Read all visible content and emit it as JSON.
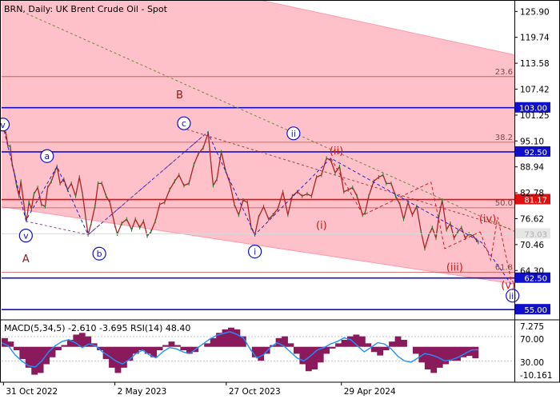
{
  "chart_data": {
    "type": "line",
    "title": "BRN, Daily:  UK Brent Crude Oil - Spot",
    "price_axis": {
      "ticks": [
        125.9,
        119.74,
        113.58,
        107.42,
        101.25,
        95.1,
        88.94,
        82.78,
        76.62,
        70.46,
        64.3
      ],
      "ylim": [
        52.94,
        128.24
      ]
    },
    "x_axis": {
      "ticks": [
        "31 Oct 2022",
        "2 May 2023",
        "27 Oct 2023",
        "29 Apr 2024"
      ],
      "xlim": [
        "2022-10-31",
        "2025-02-01"
      ]
    },
    "current_price": "73.03",
    "horizontal_levels": [
      {
        "value": 103.0,
        "label": "103.00",
        "color": "#1010cc"
      },
      {
        "value": 92.5,
        "label": "92.50",
        "color": "#1010cc"
      },
      {
        "value": 81.17,
        "label": "81.17",
        "color": "#e01010"
      },
      {
        "value": 62.5,
        "label": "62.50",
        "color": "#1010cc"
      },
      {
        "value": 55.0,
        "label": "55.00",
        "color": "#1010cc"
      }
    ],
    "fibonacci_levels": [
      {
        "value": 110.4,
        "label": "23.6"
      },
      {
        "value": 94.8,
        "label": "38.2"
      },
      {
        "value": 79.2,
        "label": "50.0"
      },
      {
        "value": 63.9,
        "label": "61.8"
      }
    ],
    "channel": {
      "upper": [
        [
          "2022-10-31",
          141.8
        ],
        [
          "2025-02-01",
          115.6
        ]
      ],
      "lower": [
        [
          "2022-10-31",
          79.5
        ],
        [
          "2025-02-01",
          61.1
        ]
      ]
    },
    "trend_lines": [
      {
        "points": [
          [
            "2022-12-10",
            125.4
          ],
          [
            "2025-02-01",
            73.6
          ]
        ],
        "style": "dotted-green"
      },
      {
        "points": [
          [
            "2023-08-10",
            98.5
          ],
          [
            "2025-01-25",
            74.2
          ]
        ],
        "style": "dotted-red"
      }
    ],
    "series": [
      {
        "name": "Brent daily",
        "color": "#b02020",
        "points": [
          [
            "2022-10-31",
            99.0
          ],
          [
            "2022-11-03",
            97.8
          ],
          [
            "2022-11-07",
            96.9
          ],
          [
            "2022-11-10",
            94.0
          ],
          [
            "2022-11-14",
            93.8
          ],
          [
            "2022-11-17",
            89.5
          ],
          [
            "2022-11-21",
            87.0
          ],
          [
            "2022-11-24",
            84.5
          ],
          [
            "2022-11-28",
            82.0
          ],
          [
            "2022-12-01",
            85.5
          ],
          [
            "2022-12-05",
            81.0
          ],
          [
            "2022-12-08",
            77.5
          ],
          [
            "2022-12-10",
            76.2
          ],
          [
            "2022-12-14",
            80.5
          ],
          [
            "2022-12-18",
            79.0
          ],
          [
            "2022-12-22",
            82.5
          ],
          [
            "2022-12-28",
            84.0
          ],
          [
            "2023-01-03",
            80.0
          ],
          [
            "2023-01-09",
            79.5
          ],
          [
            "2023-01-13",
            84.0
          ],
          [
            "2023-01-19",
            85.5
          ],
          [
            "2023-01-25",
            88.0
          ],
          [
            "2023-01-28",
            89.0
          ],
          [
            "2023-02-02",
            85.0
          ],
          [
            "2023-02-08",
            86.0
          ],
          [
            "2023-02-14",
            83.5
          ],
          [
            "2023-02-20",
            85.0
          ],
          [
            "2023-02-27",
            82.0
          ],
          [
            "2023-03-05",
            86.5
          ],
          [
            "2023-03-10",
            82.5
          ],
          [
            "2023-03-15",
            77.0
          ],
          [
            "2023-03-19",
            72.8
          ],
          [
            "2023-03-24",
            75.5
          ],
          [
            "2023-03-30",
            79.5
          ],
          [
            "2023-04-04",
            85.0
          ],
          [
            "2023-04-10",
            85.0
          ],
          [
            "2023-04-17",
            82.0
          ],
          [
            "2023-04-23",
            80.5
          ],
          [
            "2023-05-01",
            75.0
          ],
          [
            "2023-05-05",
            73.0
          ],
          [
            "2023-05-12",
            75.5
          ],
          [
            "2023-05-20",
            76.5
          ],
          [
            "2023-05-28",
            74.0
          ],
          [
            "2023-06-03",
            76.5
          ],
          [
            "2023-06-10",
            74.5
          ],
          [
            "2023-06-16",
            76.0
          ],
          [
            "2023-06-22",
            72.5
          ],
          [
            "2023-06-28",
            73.5
          ],
          [
            "2023-07-05",
            76.0
          ],
          [
            "2023-07-12",
            80.0
          ],
          [
            "2023-07-20",
            80.5
          ],
          [
            "2023-07-28",
            83.5
          ],
          [
            "2023-08-05",
            85.5
          ],
          [
            "2023-08-12",
            87.0
          ],
          [
            "2023-08-20",
            84.5
          ],
          [
            "2023-08-28",
            85.0
          ],
          [
            "2023-09-05",
            89.5
          ],
          [
            "2023-09-12",
            92.0
          ],
          [
            "2023-09-20",
            93.5
          ],
          [
            "2023-09-28",
            97.0
          ],
          [
            "2023-10-02",
            90.5
          ],
          [
            "2023-10-06",
            84.5
          ],
          [
            "2023-10-12",
            86.0
          ],
          [
            "2023-10-19",
            92.5
          ],
          [
            "2023-10-26",
            88.0
          ],
          [
            "2023-11-02",
            85.0
          ],
          [
            "2023-11-09",
            80.0
          ],
          [
            "2023-11-16",
            77.5
          ],
          [
            "2023-11-23",
            81.0
          ],
          [
            "2023-11-30",
            80.5
          ],
          [
            "2023-12-06",
            74.5
          ],
          [
            "2023-12-12",
            72.8
          ],
          [
            "2023-12-18",
            77.0
          ],
          [
            "2023-12-26",
            79.5
          ],
          [
            "2024-01-03",
            76.5
          ],
          [
            "2024-01-10",
            77.5
          ],
          [
            "2024-01-18",
            79.0
          ],
          [
            "2024-01-26",
            83.0
          ],
          [
            "2024-02-03",
            77.5
          ],
          [
            "2024-02-10",
            82.0
          ],
          [
            "2024-02-18",
            83.0
          ],
          [
            "2024-02-26",
            82.0
          ],
          [
            "2024-03-05",
            82.5
          ],
          [
            "2024-03-12",
            82.0
          ],
          [
            "2024-03-20",
            86.5
          ],
          [
            "2024-03-28",
            87.0
          ],
          [
            "2024-04-05",
            91.0
          ],
          [
            "2024-04-12",
            90.5
          ],
          [
            "2024-04-19",
            87.5
          ],
          [
            "2024-04-26",
            89.0
          ],
          [
            "2024-05-03",
            83.0
          ],
          [
            "2024-05-10",
            83.5
          ],
          [
            "2024-05-17",
            84.0
          ],
          [
            "2024-05-24",
            82.0
          ],
          [
            "2024-06-02",
            77.5
          ],
          [
            "2024-06-06",
            78.0
          ],
          [
            "2024-06-12",
            82.0
          ],
          [
            "2024-06-20",
            85.5
          ],
          [
            "2024-06-28",
            86.5
          ],
          [
            "2024-07-05",
            87.0
          ],
          [
            "2024-07-10",
            85.0
          ],
          [
            "2024-07-18",
            85.0
          ],
          [
            "2024-07-25",
            82.0
          ],
          [
            "2024-08-01",
            80.0
          ],
          [
            "2024-08-07",
            76.5
          ],
          [
            "2024-08-14",
            80.5
          ],
          [
            "2024-08-21",
            77.5
          ],
          [
            "2024-08-28",
            79.5
          ],
          [
            "2024-09-04",
            73.5
          ],
          [
            "2024-09-10",
            69.5
          ],
          [
            "2024-09-16",
            72.5
          ],
          [
            "2024-09-22",
            74.5
          ],
          [
            "2024-09-28",
            72.0
          ],
          [
            "2024-10-03",
            77.5
          ],
          [
            "2024-10-08",
            81.0
          ],
          [
            "2024-10-15",
            74.0
          ],
          [
            "2024-10-21",
            75.5
          ],
          [
            "2024-10-27",
            72.0
          ],
          [
            "2024-11-02",
            73.5
          ],
          [
            "2024-11-08",
            74.5
          ],
          [
            "2024-11-14",
            72.0
          ],
          [
            "2024-11-20",
            73.0
          ],
          [
            "2024-11-27",
            72.5
          ],
          [
            "2024-12-02",
            71.5
          ],
          [
            "2024-12-05",
            71.0
          ]
        ]
      }
    ],
    "wave_paths": [
      {
        "style": "blue-dash",
        "points": [
          [
            "2022-11-02",
            98.8
          ],
          [
            "2022-12-09",
            76.2
          ],
          [
            "2023-01-28",
            89.0
          ],
          [
            "2023-03-19",
            72.8
          ],
          [
            "2023-09-27",
            97.2
          ],
          [
            "2023-12-12",
            72.8
          ],
          [
            "2024-04-12",
            91.0
          ],
          [
            "2024-12-10",
            71.0
          ],
          [
            "2025-01-27",
            61.0
          ]
        ]
      },
      {
        "style": "purple-dash",
        "points": [
          [
            "2022-12-09",
            76.0
          ],
          [
            "2023-03-19",
            72.8
          ],
          [
            "2023-09-27",
            97.2
          ]
        ]
      },
      {
        "style": "red-dash",
        "points": [
          [
            "2024-04-12",
            91.0
          ],
          [
            "2024-06-03",
            77.5
          ],
          [
            "2024-09-20",
            85.3
          ],
          [
            "2024-10-12",
            69.5
          ],
          [
            "2024-12-08",
            73.5
          ]
        ]
      },
      {
        "style": "red-dash-proj",
        "points": [
          [
            "2024-12-08",
            73.5
          ],
          [
            "2024-12-25",
            66.8
          ],
          [
            "2025-01-05",
            77.0
          ],
          [
            "2025-01-27",
            61.8
          ]
        ]
      }
    ],
    "wave_labels": [
      {
        "text": "v",
        "date": "2022-11-02",
        "value": 99.0,
        "shape": "circle",
        "color": "#1010cc"
      },
      {
        "text": "a",
        "date": "2023-01-12",
        "value": 91.5,
        "shape": "circle",
        "color": "#1010cc"
      },
      {
        "text": "v",
        "date": "2022-12-09",
        "value": 72.6,
        "shape": "circle",
        "color": "#1010cc"
      },
      {
        "text": "A",
        "date": "2022-12-09",
        "value": 67.0,
        "shape": "plain",
        "color": "#8b1a1a"
      },
      {
        "text": "B",
        "date": "2023-08-13",
        "value": 106.0,
        "shape": "plain",
        "color": "#8b1a1a"
      },
      {
        "text": "c",
        "date": "2023-08-20",
        "value": 99.3,
        "shape": "circle",
        "color": "#1010cc"
      },
      {
        "text": "b",
        "date": "2023-04-06",
        "value": 68.3,
        "shape": "circle",
        "color": "#1010cc"
      },
      {
        "text": "i",
        "date": "2023-12-12",
        "value": 68.8,
        "shape": "circle",
        "color": "#1010cc"
      },
      {
        "text": "ii",
        "date": "2024-02-12",
        "value": 96.9,
        "shape": "circle",
        "color": "#1010cc"
      },
      {
        "text": "iii",
        "date": "2025-01-29",
        "value": 58.3,
        "shape": "circle",
        "color": "#1010cc"
      },
      {
        "text": "(i)",
        "date": "2024-03-28",
        "value": 75.0,
        "shape": "plain",
        "color": "#d01818"
      },
      {
        "text": "(ii)",
        "date": "2024-04-21",
        "value": 92.7,
        "shape": "plain",
        "color": "#d01818"
      },
      {
        "text": "(iii)",
        "date": "2024-10-28",
        "value": 65.0,
        "shape": "plain",
        "color": "#d01818"
      },
      {
        "text": "(iv)",
        "date": "2024-12-20",
        "value": 76.5,
        "shape": "plain",
        "color": "#d01818"
      },
      {
        "text": "(v)",
        "date": "2025-01-22",
        "value": 60.7,
        "shape": "plain",
        "color": "#d01818"
      }
    ],
    "indicator": {
      "label": "MACD(5,34,5) -2.610 -3.695 RSI(14) 48.40",
      "ticks": [
        "7.275",
        "70.00",
        "30.00",
        "-10.161"
      ],
      "rsi_ylim": [
        -5,
        95
      ],
      "macd_ylim": [
        -10.161,
        7.275
      ],
      "macd_samples": [
        2.5,
        1.5,
        -1.0,
        -3.5,
        -6.0,
        -8.0,
        -7.5,
        -5.0,
        -3.0,
        -1.0,
        0.5,
        2.0,
        3.5,
        4.0,
        3.0,
        1.0,
        -1.0,
        -3.5,
        -6.0,
        -7.5,
        -6.0,
        -4.0,
        -2.0,
        -1.0,
        -2.0,
        -3.0,
        -1.0,
        0.5,
        1.5,
        0.5,
        -1.0,
        -2.0,
        -1.5,
        0.0,
        1.0,
        2.5,
        4.0,
        5.0,
        5.5,
        5.0,
        3.0,
        0.0,
        -3.0,
        -4.0,
        -2.0,
        0.5,
        2.5,
        3.0,
        1.0,
        -2.0,
        -5.0,
        -7.0,
        -6.5,
        -4.5,
        -2.0,
        -0.5,
        1.0,
        2.0,
        3.0,
        3.5,
        3.0,
        1.0,
        -1.5,
        -2.5,
        -1.0,
        1.5,
        3.0,
        2.0,
        0.0,
        -2.0,
        -4.5,
        -6.5,
        -7.5,
        -6.0,
        -5.0,
        -4.0,
        -4.0,
        -3.0,
        -2.6,
        -3.3
      ],
      "rsi_samples": [
        60,
        55,
        40,
        30,
        22,
        20,
        30,
        45,
        55,
        62,
        65,
        60,
        52,
        58,
        55,
        45,
        38,
        30,
        25,
        32,
        42,
        48,
        40,
        35,
        45,
        52,
        50,
        45,
        42,
        50,
        58,
        66,
        72,
        75,
        78,
        74,
        68,
        50,
        35,
        40,
        52,
        60,
        55,
        45,
        35,
        30,
        38,
        48,
        52,
        58,
        62,
        68,
        65,
        55,
        45,
        52,
        60,
        58,
        50,
        38,
        30,
        28,
        35,
        42,
        40,
        36,
        30,
        32,
        36,
        42,
        48,
        48.4
      ],
      "macd_color": "#8b1a5c",
      "rsi_color": "#1e90ff"
    }
  }
}
